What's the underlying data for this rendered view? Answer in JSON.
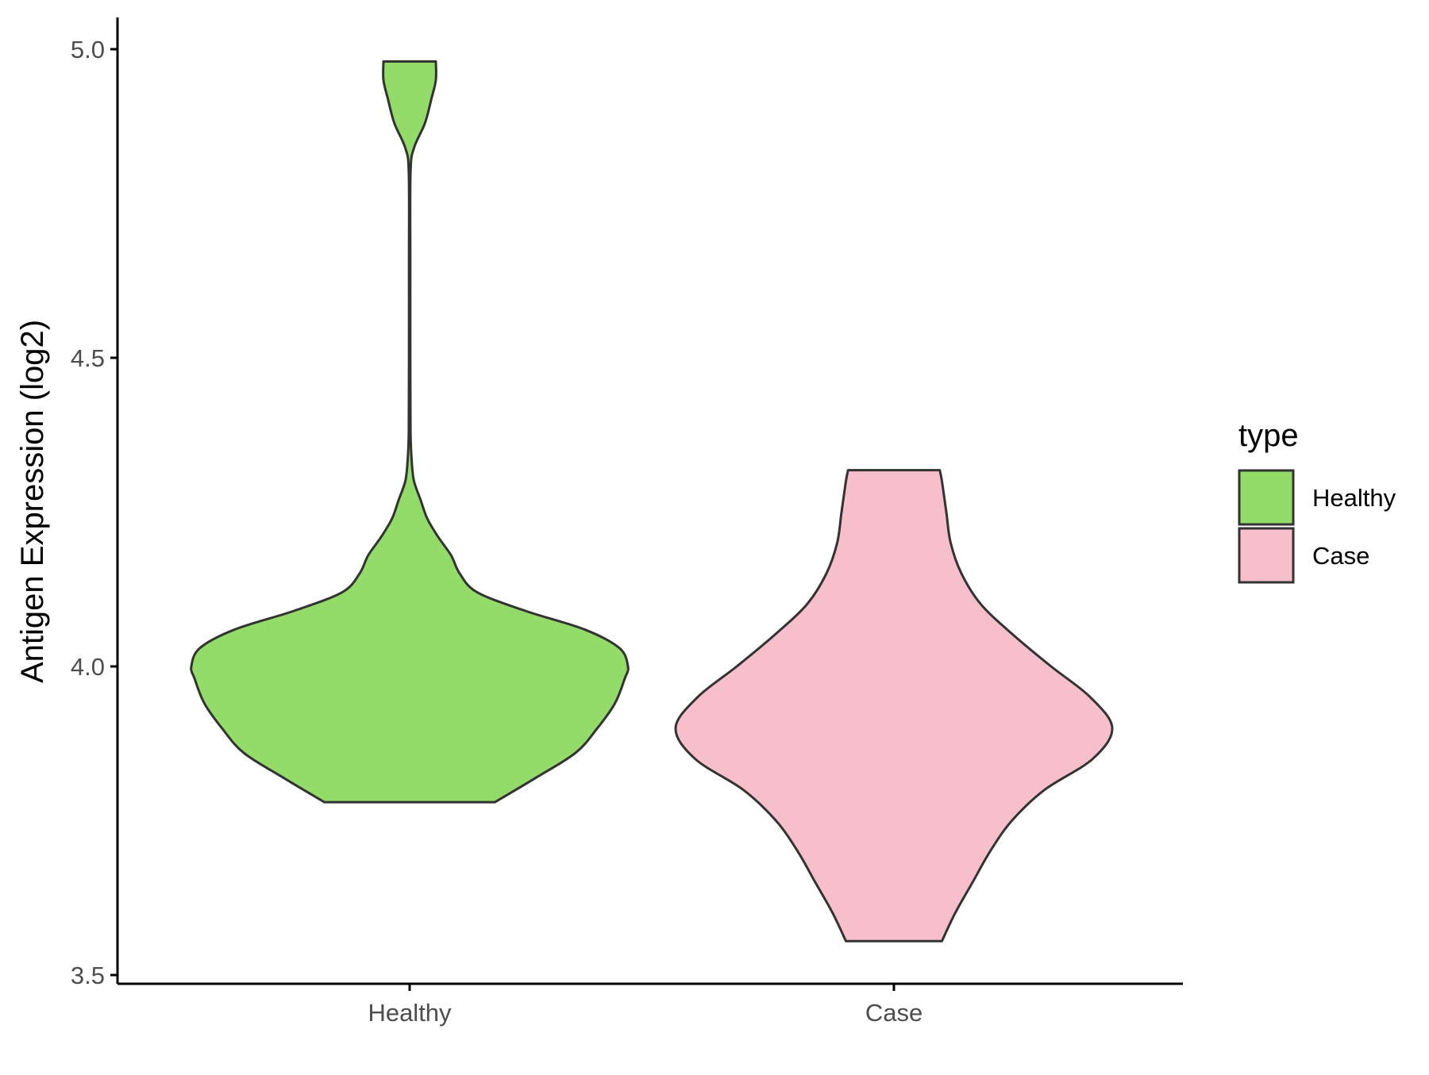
{
  "chart_data": {
    "type": "violin",
    "title": "",
    "xlabel": "",
    "ylabel": "Antigen Expression (log2)",
    "ylim": [
      3.5,
      5.0
    ],
    "y_ticks": [
      "3.5",
      "4.0",
      "4.5",
      "5.0"
    ],
    "categories": [
      "Healthy",
      "Case"
    ],
    "grid": false,
    "legend": {
      "title": "type",
      "placement": "right",
      "entries": [
        {
          "label": "Healthy",
          "color": "#93dc6a"
        },
        {
          "label": "Case",
          "color": "#f7bfcb"
        }
      ]
    },
    "series": [
      {
        "category": "Healthy",
        "color": "#93dc6a",
        "y_min": 3.78,
        "y_max": 4.98,
        "density_profile": [
          [
            3.78,
            0.39
          ],
          [
            3.82,
            0.58
          ],
          [
            3.86,
            0.76
          ],
          [
            3.9,
            0.86
          ],
          [
            3.94,
            0.94
          ],
          [
            3.98,
            0.985
          ],
          [
            4.0,
            1.0
          ],
          [
            4.03,
            0.96
          ],
          [
            4.06,
            0.8
          ],
          [
            4.09,
            0.53
          ],
          [
            4.12,
            0.31
          ],
          [
            4.15,
            0.23
          ],
          [
            4.18,
            0.19
          ],
          [
            4.21,
            0.13
          ],
          [
            4.24,
            0.08
          ],
          [
            4.27,
            0.05
          ],
          [
            4.3,
            0.02
          ],
          [
            4.33,
            0.01
          ],
          [
            4.38,
            0.004
          ],
          [
            4.5,
            0.003
          ],
          [
            4.65,
            0.003
          ],
          [
            4.8,
            0.004
          ],
          [
            4.84,
            0.02
          ],
          [
            4.88,
            0.07
          ],
          [
            4.92,
            0.1
          ],
          [
            4.95,
            0.12
          ],
          [
            4.98,
            0.12
          ]
        ]
      },
      {
        "category": "Case",
        "color": "#f7bfcb",
        "y_min": 3.555,
        "y_max": 4.318,
        "density_profile": [
          [
            3.555,
            0.22
          ],
          [
            3.6,
            0.28
          ],
          [
            3.65,
            0.36
          ],
          [
            3.7,
            0.44
          ],
          [
            3.75,
            0.54
          ],
          [
            3.8,
            0.69
          ],
          [
            3.85,
            0.91
          ],
          [
            3.9,
            1.0
          ],
          [
            3.95,
            0.9
          ],
          [
            4.0,
            0.72
          ],
          [
            4.05,
            0.55
          ],
          [
            4.1,
            0.4
          ],
          [
            4.15,
            0.31
          ],
          [
            4.2,
            0.26
          ],
          [
            4.25,
            0.24
          ],
          [
            4.3,
            0.22
          ],
          [
            4.318,
            0.21
          ]
        ]
      }
    ]
  }
}
